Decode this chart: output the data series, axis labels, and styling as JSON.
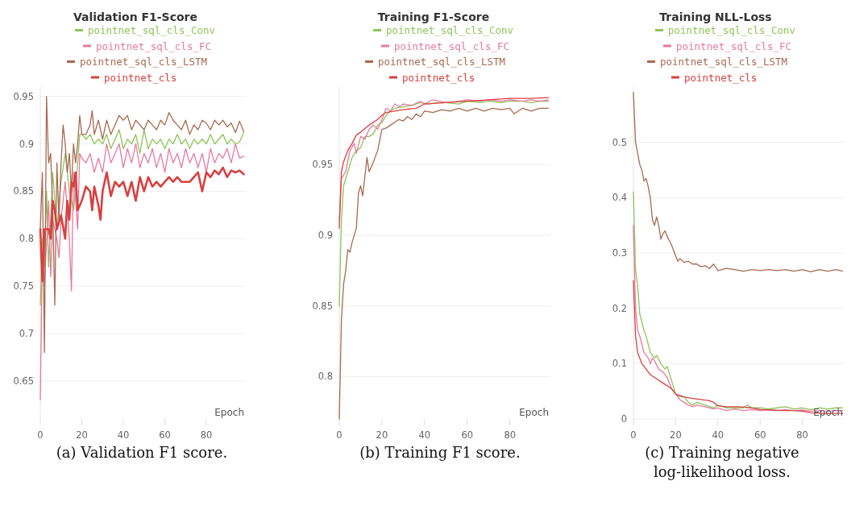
{
  "chart_data": [
    {
      "type": "line",
      "title": "Validation F1-Score",
      "xlabel": "Epoch",
      "legend": "top",
      "grid": "y",
      "xlim": [
        0,
        99
      ],
      "xticks": [
        0,
        20,
        40,
        60,
        80
      ],
      "ylim": [
        0.61,
        0.96
      ],
      "yticks": [
        0.65,
        0.7,
        0.75,
        0.8,
        0.85,
        0.9,
        0.95
      ],
      "annotations": [
        "(a) Validation F1 score."
      ],
      "series": [
        {
          "name": "pointnet_sql_cls_Conv",
          "color": "#8fc45a",
          "x": [
            0,
            1,
            2,
            3,
            4,
            6,
            8,
            10,
            12,
            14,
            16,
            18,
            19,
            20,
            22,
            24,
            26,
            28,
            30,
            32,
            34,
            36,
            38,
            40,
            42,
            44,
            46,
            48,
            50,
            52,
            54,
            56,
            58,
            60,
            62,
            64,
            66,
            68,
            70,
            72,
            74,
            76,
            78,
            80,
            82,
            84,
            86,
            88,
            90,
            92,
            94,
            96,
            98
          ],
          "values": [
            0.73,
            0.8,
            0.77,
            0.85,
            0.77,
            0.87,
            0.81,
            0.86,
            0.89,
            0.85,
            0.83,
            0.88,
            0.91,
            0.91,
            0.905,
            0.91,
            0.9,
            0.905,
            0.9,
            0.91,
            0.895,
            0.905,
            0.915,
            0.895,
            0.905,
            0.9,
            0.91,
            0.89,
            0.915,
            0.895,
            0.905,
            0.9,
            0.905,
            0.895,
            0.905,
            0.9,
            0.91,
            0.9,
            0.905,
            0.895,
            0.905,
            0.9,
            0.905,
            0.9,
            0.91,
            0.9,
            0.905,
            0.91,
            0.9,
            0.905,
            0.9,
            0.902,
            0.912
          ]
        },
        {
          "name": "pointnet_sql_cls_FC",
          "color": "#e8799e",
          "x": [
            0,
            1,
            2,
            4,
            5,
            6,
            8,
            9,
            10,
            12,
            14,
            15,
            16,
            18,
            19,
            20,
            22,
            24,
            26,
            28,
            30,
            32,
            34,
            36,
            38,
            40,
            42,
            44,
            46,
            48,
            50,
            52,
            54,
            56,
            58,
            60,
            62,
            64,
            66,
            68,
            70,
            72,
            74,
            76,
            78,
            80,
            82,
            84,
            86,
            88,
            90,
            92,
            94,
            96,
            98
          ],
          "values": [
            0.63,
            0.79,
            0.75,
            0.84,
            0.76,
            0.82,
            0.8,
            0.78,
            0.82,
            0.86,
            0.8,
            0.745,
            0.87,
            0.81,
            0.89,
            0.885,
            0.88,
            0.89,
            0.87,
            0.885,
            0.87,
            0.9,
            0.88,
            0.89,
            0.9,
            0.875,
            0.895,
            0.88,
            0.9,
            0.875,
            0.89,
            0.88,
            0.895,
            0.875,
            0.89,
            0.87,
            0.895,
            0.88,
            0.89,
            0.875,
            0.895,
            0.88,
            0.89,
            0.875,
            0.89,
            0.87,
            0.895,
            0.88,
            0.89,
            0.885,
            0.895,
            0.88,
            0.9,
            0.885,
            0.887
          ]
        },
        {
          "name": "pointnet_sql_cls_LSTM",
          "color": "#a86a50",
          "x": [
            0,
            1,
            2,
            3,
            4,
            5,
            6,
            7,
            8,
            9,
            10,
            11,
            12,
            13,
            14,
            15,
            16,
            17,
            18,
            19,
            20,
            22,
            24,
            25,
            26,
            28,
            30,
            32,
            34,
            36,
            38,
            40,
            42,
            44,
            46,
            48,
            50,
            52,
            54,
            56,
            58,
            60,
            62,
            64,
            66,
            68,
            70,
            72,
            74,
            76,
            78,
            80,
            82,
            84,
            86,
            88,
            90,
            92,
            94,
            96,
            98
          ],
          "values": [
            0.81,
            0.87,
            0.68,
            0.95,
            0.88,
            0.89,
            0.83,
            0.73,
            0.88,
            0.82,
            0.88,
            0.92,
            0.9,
            0.87,
            0.89,
            0.85,
            0.9,
            0.88,
            0.9,
            0.93,
            0.91,
            0.91,
            0.92,
            0.935,
            0.91,
            0.925,
            0.905,
            0.925,
            0.91,
            0.92,
            0.93,
            0.925,
            0.93,
            0.915,
            0.925,
            0.92,
            0.915,
            0.925,
            0.92,
            0.915,
            0.925,
            0.92,
            0.933,
            0.925,
            0.92,
            0.915,
            0.925,
            0.91,
            0.92,
            0.915,
            0.925,
            0.922,
            0.915,
            0.925,
            0.92,
            0.925,
            0.918,
            0.922,
            0.912,
            0.924,
            0.913
          ]
        },
        {
          "name": "pointnet_cls",
          "color": "#d94040",
          "x": [
            0,
            1,
            2,
            3,
            4,
            5,
            6,
            7,
            8,
            10,
            12,
            13,
            14,
            15,
            16,
            17,
            18,
            20,
            22,
            24,
            25,
            26,
            28,
            29,
            30,
            32,
            34,
            36,
            38,
            40,
            42,
            44,
            46,
            48,
            50,
            52,
            54,
            56,
            58,
            60,
            62,
            64,
            66,
            68,
            70,
            72,
            74,
            76,
            78,
            80,
            82,
            84,
            86,
            88,
            90,
            92,
            94,
            96,
            98
          ],
          "values": [
            0.81,
            0.755,
            0.81,
            0.81,
            0.81,
            0.8,
            0.84,
            0.83,
            0.81,
            0.825,
            0.8,
            0.84,
            0.82,
            0.86,
            0.855,
            0.87,
            0.83,
            0.84,
            0.855,
            0.85,
            0.83,
            0.855,
            0.835,
            0.82,
            0.85,
            0.87,
            0.845,
            0.86,
            0.855,
            0.86,
            0.845,
            0.86,
            0.84,
            0.865,
            0.85,
            0.865,
            0.855,
            0.86,
            0.855,
            0.86,
            0.865,
            0.86,
            0.865,
            0.86,
            0.86,
            0.86,
            0.865,
            0.87,
            0.85,
            0.87,
            0.865,
            0.872,
            0.868,
            0.875,
            0.865,
            0.872,
            0.87,
            0.872,
            0.868
          ]
        }
      ]
    },
    {
      "type": "line",
      "title": "Training F1-Score",
      "xlabel": "Epoch",
      "legend": "top",
      "grid": "y",
      "xlim": [
        0,
        99
      ],
      "xticks": [
        0,
        20,
        40,
        60,
        80
      ],
      "ylim": [
        0.77,
        1.005
      ],
      "yticks": [
        0.8,
        0.85,
        0.9,
        0.95
      ],
      "annotations": [
        "(b) Training F1 score."
      ],
      "series": [
        {
          "name": "pointnet_sql_cls_Conv",
          "color": "#8fc45a",
          "x": [
            0,
            1,
            2,
            4,
            6,
            8,
            10,
            12,
            14,
            16,
            18,
            20,
            22,
            24,
            26,
            30,
            34,
            38,
            42,
            46,
            50,
            56,
            60,
            66,
            70,
            76,
            80,
            86,
            90,
            94,
            98
          ],
          "values": [
            0.85,
            0.91,
            0.935,
            0.945,
            0.955,
            0.96,
            0.962,
            0.97,
            0.97,
            0.972,
            0.978,
            0.98,
            0.985,
            0.988,
            0.99,
            0.991,
            0.992,
            0.994,
            0.993,
            0.994,
            0.994,
            0.993,
            0.995,
            0.994,
            0.995,
            0.994,
            0.995,
            0.995,
            0.994,
            0.995,
            0.995
          ]
        },
        {
          "name": "pointnet_sql_cls_FC",
          "color": "#e8799e",
          "x": [
            0,
            1,
            3,
            5,
            7,
            8,
            10,
            12,
            14,
            16,
            18,
            20,
            22,
            24,
            26,
            28,
            30,
            34,
            38,
            40,
            44,
            50,
            56,
            60,
            66,
            70,
            76,
            80,
            86,
            90,
            94,
            98
          ],
          "values": [
            0.91,
            0.94,
            0.945,
            0.96,
            0.965,
            0.958,
            0.97,
            0.968,
            0.975,
            0.978,
            0.975,
            0.982,
            0.99,
            0.988,
            0.993,
            0.991,
            0.993,
            0.992,
            0.995,
            0.993,
            0.996,
            0.994,
            0.995,
            0.996,
            0.995,
            0.996,
            0.995,
            0.996,
            0.995,
            0.996,
            0.995,
            0.996
          ]
        },
        {
          "name": "pointnet_sql_cls_LSTM",
          "color": "#a86a50",
          "x": [
            0,
            1,
            2,
            3,
            4,
            5,
            6,
            8,
            9,
            10,
            11,
            13,
            14,
            16,
            18,
            20,
            22,
            24,
            26,
            28,
            30,
            32,
            34,
            36,
            38,
            40,
            44,
            48,
            52,
            56,
            60,
            64,
            68,
            72,
            76,
            80,
            82,
            86,
            90,
            94,
            98
          ],
          "values": [
            0.77,
            0.84,
            0.865,
            0.875,
            0.89,
            0.888,
            0.895,
            0.905,
            0.93,
            0.935,
            0.928,
            0.955,
            0.945,
            0.952,
            0.96,
            0.975,
            0.976,
            0.978,
            0.98,
            0.982,
            0.981,
            0.984,
            0.982,
            0.986,
            0.984,
            0.988,
            0.987,
            0.989,
            0.988,
            0.99,
            0.988,
            0.99,
            0.988,
            0.99,
            0.989,
            0.99,
            0.986,
            0.99,
            0.988,
            0.99,
            0.99
          ]
        },
        {
          "name": "pointnet_cls",
          "color": "#d94040",
          "x": [
            0,
            1,
            2,
            4,
            6,
            8,
            10,
            14,
            18,
            20,
            22,
            26,
            30,
            36,
            40,
            50,
            60,
            70,
            80,
            90,
            98
          ],
          "values": [
            0.905,
            0.945,
            0.952,
            0.96,
            0.965,
            0.971,
            0.973,
            0.978,
            0.982,
            0.985,
            0.987,
            0.988,
            0.989,
            0.99,
            0.993,
            0.994,
            0.995,
            0.996,
            0.997,
            0.997,
            0.9975
          ]
        }
      ]
    },
    {
      "type": "line",
      "title": "Training NLL-Loss",
      "xlabel": "Epoch",
      "legend": "top",
      "grid": "y",
      "xlim": [
        0,
        100
      ],
      "xticks": [
        0,
        20,
        40,
        60,
        80
      ],
      "ylim": [
        0,
        0.6
      ],
      "yticks": [
        0,
        0.1,
        0.2,
        0.3,
        0.4,
        0.5
      ],
      "annotations": [
        "(c) Training negative log-likelihood loss."
      ],
      "series": [
        {
          "name": "pointnet_sql_cls_Conv",
          "color": "#8fc45a",
          "x": [
            0,
            1,
            2,
            3,
            5,
            6,
            8,
            10,
            11,
            13,
            15,
            16,
            18,
            20,
            22,
            24,
            26,
            28,
            30,
            34,
            38,
            40,
            44,
            48,
            52,
            54,
            56,
            60,
            64,
            68,
            72,
            76,
            80,
            84,
            88,
            92,
            96,
            99
          ],
          "values": [
            0.41,
            0.27,
            0.24,
            0.19,
            0.16,
            0.15,
            0.12,
            0.11,
            0.115,
            0.1,
            0.09,
            0.095,
            0.07,
            0.045,
            0.04,
            0.04,
            0.03,
            0.025,
            0.03,
            0.025,
            0.02,
            0.025,
            0.02,
            0.02,
            0.02,
            0.025,
            0.02,
            0.02,
            0.018,
            0.02,
            0.022,
            0.018,
            0.02,
            0.017,
            0.02,
            0.018,
            0.02,
            0.02
          ]
        },
        {
          "name": "pointnet_sql_cls_FC",
          "color": "#e8799e",
          "x": [
            0,
            1,
            2,
            3,
            5,
            7,
            8,
            9,
            10,
            12,
            14,
            16,
            18,
            20,
            22,
            24,
            26,
            28,
            30,
            34,
            38,
            40,
            44,
            48,
            52,
            56,
            60,
            64,
            68,
            72,
            76,
            80,
            84,
            88,
            92,
            96,
            99
          ],
          "values": [
            0.35,
            0.2,
            0.16,
            0.15,
            0.12,
            0.11,
            0.1,
            0.11,
            0.105,
            0.09,
            0.085,
            0.075,
            0.055,
            0.045,
            0.035,
            0.03,
            0.025,
            0.022,
            0.025,
            0.022,
            0.018,
            0.02,
            0.015,
            0.018,
            0.015,
            0.017,
            0.015,
            0.017,
            0.015,
            0.017,
            0.015,
            0.016,
            0.014,
            0.015,
            0.014,
            0.015,
            0.015
          ]
        },
        {
          "name": "pointnet_sql_cls_LSTM",
          "color": "#a86a50",
          "x": [
            0,
            1,
            2,
            3,
            4,
            5,
            6,
            7,
            8,
            9,
            10,
            11,
            12,
            13,
            14,
            15,
            16,
            18,
            20,
            21,
            22,
            24,
            26,
            28,
            30,
            32,
            34,
            36,
            38,
            40,
            44,
            48,
            52,
            56,
            60,
            64,
            68,
            72,
            76,
            80,
            84,
            88,
            92,
            96,
            99
          ],
          "values": [
            0.59,
            0.5,
            0.48,
            0.46,
            0.45,
            0.43,
            0.435,
            0.42,
            0.4,
            0.36,
            0.35,
            0.365,
            0.35,
            0.325,
            0.335,
            0.34,
            0.33,
            0.315,
            0.295,
            0.285,
            0.29,
            0.283,
            0.285,
            0.28,
            0.28,
            0.275,
            0.277,
            0.272,
            0.28,
            0.268,
            0.272,
            0.27,
            0.267,
            0.27,
            0.268,
            0.27,
            0.268,
            0.27,
            0.267,
            0.27,
            0.266,
            0.27,
            0.267,
            0.27,
            0.267
          ]
        },
        {
          "name": "pointnet_cls",
          "color": "#d94040",
          "x": [
            0,
            1,
            2,
            4,
            6,
            8,
            10,
            14,
            18,
            20,
            24,
            28,
            32,
            36,
            38,
            40,
            44,
            50,
            56,
            60,
            66,
            70,
            76,
            80,
            84,
            90,
            96,
            99
          ],
          "values": [
            0.25,
            0.15,
            0.12,
            0.1,
            0.09,
            0.08,
            0.075,
            0.065,
            0.055,
            0.045,
            0.04,
            0.037,
            0.035,
            0.033,
            0.03,
            0.024,
            0.022,
            0.022,
            0.02,
            0.017,
            0.016,
            0.015,
            0.015,
            0.014,
            0.011,
            0.01,
            0.01,
            0.01
          ]
        }
      ]
    }
  ]
}
